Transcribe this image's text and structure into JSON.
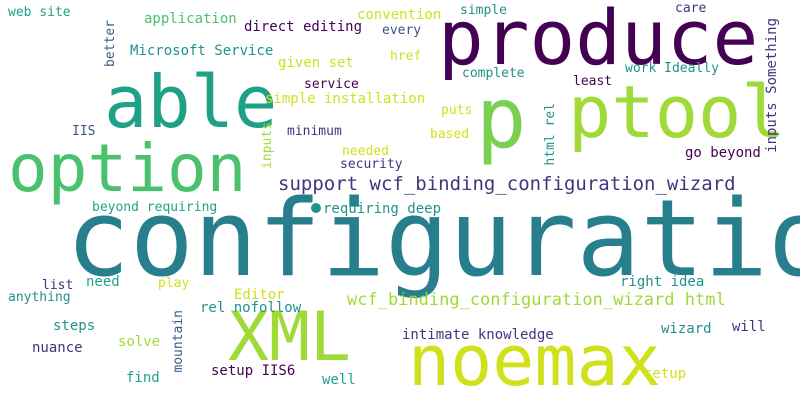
{
  "palette": {
    "background": "#ffffff",
    "dark_purple": "#440154",
    "purple": "#46337e",
    "indigo": "#3b528b",
    "blue": "#365c8d",
    "teal_blue": "#277f8e",
    "teal": "#21918c",
    "green_teal": "#1fa187",
    "green": "#4ac16d",
    "light_green": "#7ad151",
    "lime": "#a0da39",
    "yellow_green": "#d0e11c",
    "yellow": "#fde725"
  },
  "words": [
    {
      "text": "configuration",
      "color": "#277f8e"
    },
    {
      "text": "produce",
      "color": "#440154"
    },
    {
      "text": "able",
      "color": "#1fa187"
    },
    {
      "text": "p",
      "color": "#7ad151"
    },
    {
      "text": "ptool",
      "color": "#a0da39"
    },
    {
      "text": "option",
      "color": "#4ac16d"
    },
    {
      "text": "XML",
      "color": "#a0da39"
    },
    {
      "text": "noemax",
      "color": "#d0e11c"
    },
    {
      "text": "support wcf_binding_configuration_wizard",
      "color": "#46337e"
    },
    {
      "text": "wcf_binding_configuration_wizard html",
      "color": "#a0da39"
    },
    {
      "text": "web site",
      "color": "#1fa187"
    },
    {
      "text": "application",
      "color": "#4ac16d"
    },
    {
      "text": "convention",
      "color": "#d0e11c"
    },
    {
      "text": "simple",
      "color": "#21918c"
    },
    {
      "text": "care",
      "color": "#46337e"
    },
    {
      "text": "direct editing",
      "color": "#440154"
    },
    {
      "text": "every",
      "color": "#3b528b"
    },
    {
      "text": "Microsoft Service",
      "color": "#21918c"
    },
    {
      "text": "given set",
      "color": "#d0e11c"
    },
    {
      "text": "href",
      "color": "#d0e11c"
    },
    {
      "text": "complete",
      "color": "#21918c"
    },
    {
      "text": "work Ideally",
      "color": "#21918c"
    },
    {
      "text": "service",
      "color": "#440154"
    },
    {
      "text": "least",
      "color": "#440154"
    },
    {
      "text": "simple installation",
      "color": "#d0e11c"
    },
    {
      "text": "puts",
      "color": "#d0e11c"
    },
    {
      "text": "IIS",
      "color": "#3b528b"
    },
    {
      "text": "minimum",
      "color": "#46337e"
    },
    {
      "text": "based",
      "color": "#d0e11c"
    },
    {
      "text": "needed",
      "color": "#d0e11c"
    },
    {
      "text": "security",
      "color": "#46337e"
    },
    {
      "text": "go beyond",
      "color": "#440154"
    },
    {
      "text": "beyond requiring",
      "color": "#1fa187"
    },
    {
      "text": "requiring deep",
      "color": "#21918c"
    },
    {
      "text": "list",
      "color": "#46337e"
    },
    {
      "text": "need",
      "color": "#1fa187"
    },
    {
      "text": "play",
      "color": "#d0e11c"
    },
    {
      "text": "right idea",
      "color": "#21918c"
    },
    {
      "text": "anything",
      "color": "#21918c"
    },
    {
      "text": "Editor",
      "color": "#d0e11c"
    },
    {
      "text": "rel nofollow",
      "color": "#21918c"
    },
    {
      "text": "steps",
      "color": "#21918c"
    },
    {
      "text": "intimate knowledge",
      "color": "#46337e"
    },
    {
      "text": "wizard",
      "color": "#21918c"
    },
    {
      "text": "will",
      "color": "#46337e"
    },
    {
      "text": "solve",
      "color": "#a0da39"
    },
    {
      "text": "nuance",
      "color": "#46337e"
    },
    {
      "text": "find",
      "color": "#1fa187"
    },
    {
      "text": "setup IIS6",
      "color": "#440154"
    },
    {
      "text": "well",
      "color": "#1fa187"
    },
    {
      "text": "setup",
      "color": "#d0e11c"
    },
    {
      "text": "better",
      "color": "#365c8d"
    },
    {
      "text": "inputs",
      "color": "#a0da39"
    },
    {
      "text": "html rel",
      "color": "#21918c"
    },
    {
      "text": "inputs Something",
      "color": "#46337e"
    },
    {
      "text": "mountain",
      "color": "#365c8d"
    }
  ]
}
